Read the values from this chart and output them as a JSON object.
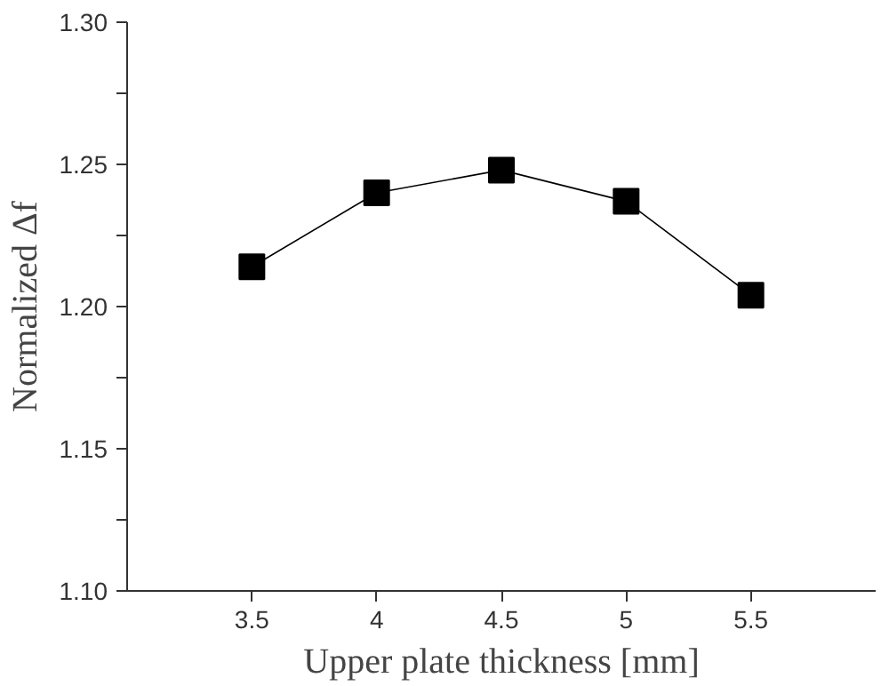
{
  "chart_data": {
    "type": "line",
    "xlabel": "Upper plate thickness [mm]",
    "ylabel": "Normalized Δf",
    "x": [
      3.5,
      4,
      4.5,
      5,
      5.5
    ],
    "series": [
      {
        "color": "#000000",
        "values": [
          1.214,
          1.24,
          1.248,
          1.237,
          1.204
        ]
      }
    ],
    "xlim": [
      3,
      6
    ],
    "xticks": [
      3.5,
      4,
      4.5,
      5,
      5.5
    ],
    "ylim": [
      1.1,
      1.3
    ],
    "yticks": [
      {
        "value": 1.1,
        "label": "1.10"
      },
      {
        "value": 1.125,
        "label": null
      },
      1.15,
      {
        "value": 1.175,
        "label": null
      },
      {
        "value": 1.2,
        "label": "1.20"
      },
      {
        "value": 1.225,
        "label": null
      },
      1.25,
      {
        "value": 1.275,
        "label": null
      },
      {
        "value": 1.3,
        "label": "1.30"
      }
    ],
    "grid": false,
    "marker": "square",
    "line_style": "solid"
  }
}
